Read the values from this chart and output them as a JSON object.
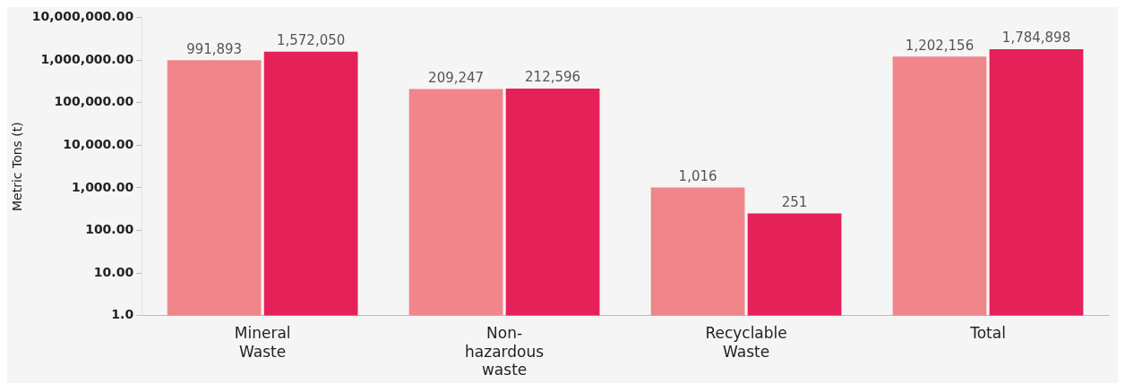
{
  "chart_data": {
    "type": "bar",
    "ylabel": "Metric Tons (t)",
    "categories": [
      "Mineral Waste",
      "Non-hazardous waste",
      "Recyclable Waste",
      "Total"
    ],
    "series": [
      {
        "color": "#f0868a",
        "values": [
          991893,
          209247,
          1016,
          1202156
        ],
        "value_labels": [
          "991,893",
          "209,247",
          "1,016",
          "1,202,156"
        ]
      },
      {
        "color": "#e5215a",
        "values": [
          1572050,
          212596,
          251,
          1784898
        ],
        "value_labels": [
          "1,572,050",
          "212,596",
          "251",
          "1,784,898"
        ]
      }
    ],
    "log": "y",
    "ylim": [
      1,
      10000000
    ],
    "yticks": [
      {
        "value": 1,
        "label": "1.0"
      },
      {
        "value": 10,
        "label": "10.00"
      },
      {
        "value": 100,
        "label": "100.00"
      },
      {
        "value": 1000,
        "label": "1,000.00"
      },
      {
        "value": 10000,
        "label": "10,000.00"
      },
      {
        "value": 100000,
        "label": "100,000.00"
      },
      {
        "value": 1000000,
        "label": "1,000,000.00"
      },
      {
        "value": 10000000,
        "label": "10,000,000.00"
      }
    ],
    "grid": false,
    "legend": false
  }
}
